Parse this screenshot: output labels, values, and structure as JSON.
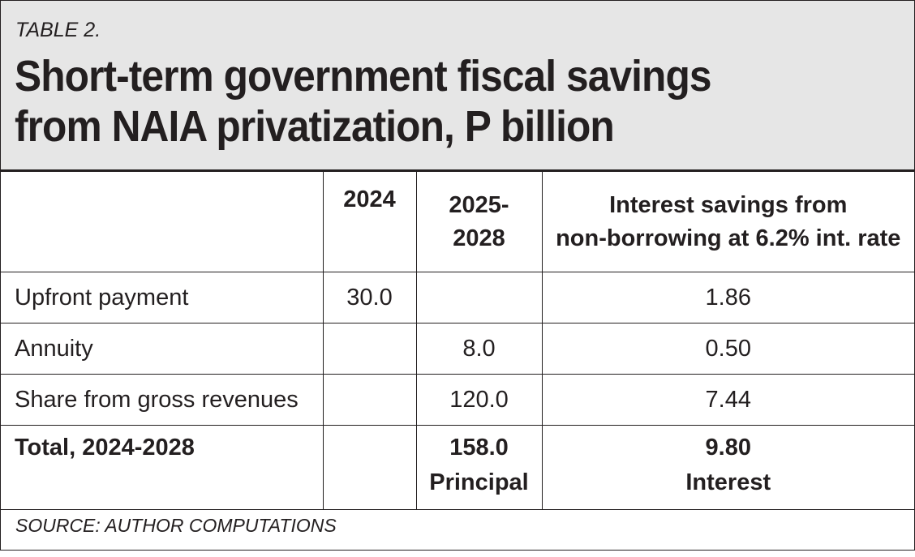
{
  "table_label": "TABLE 2.",
  "title_line1": "Short-term government fiscal savings",
  "title_line2": "from NAIA privatization, P billion",
  "columns": {
    "blank": "",
    "col1": "2024",
    "col2_line1": "2025-",
    "col2_line2": "2028",
    "col3_line1": "Interest savings from",
    "col3_line2": "non-borrowing at 6.2% int. rate"
  },
  "rows": [
    {
      "label": "Upfront payment",
      "y2024": "30.0",
      "y2025_2028": "",
      "interest": "1.86"
    },
    {
      "label": "Annuity",
      "y2024": "",
      "y2025_2028": "8.0",
      "interest": "0.50"
    },
    {
      "label": "Share from gross revenues",
      "y2024": "",
      "y2025_2028": "120.0",
      "interest": "7.44"
    }
  ],
  "total": {
    "label": "Total, 2024-2028",
    "y2024": "",
    "y2025_2028_value": "158.0",
    "y2025_2028_note": "Principal",
    "interest_value": "9.80",
    "interest_note": "Interest"
  },
  "source": "SOURCE: AUTHOR COMPUTATIONS",
  "colors": {
    "header_bg": "#e6e6e6",
    "text": "#231f20",
    "border": "#231f20"
  }
}
